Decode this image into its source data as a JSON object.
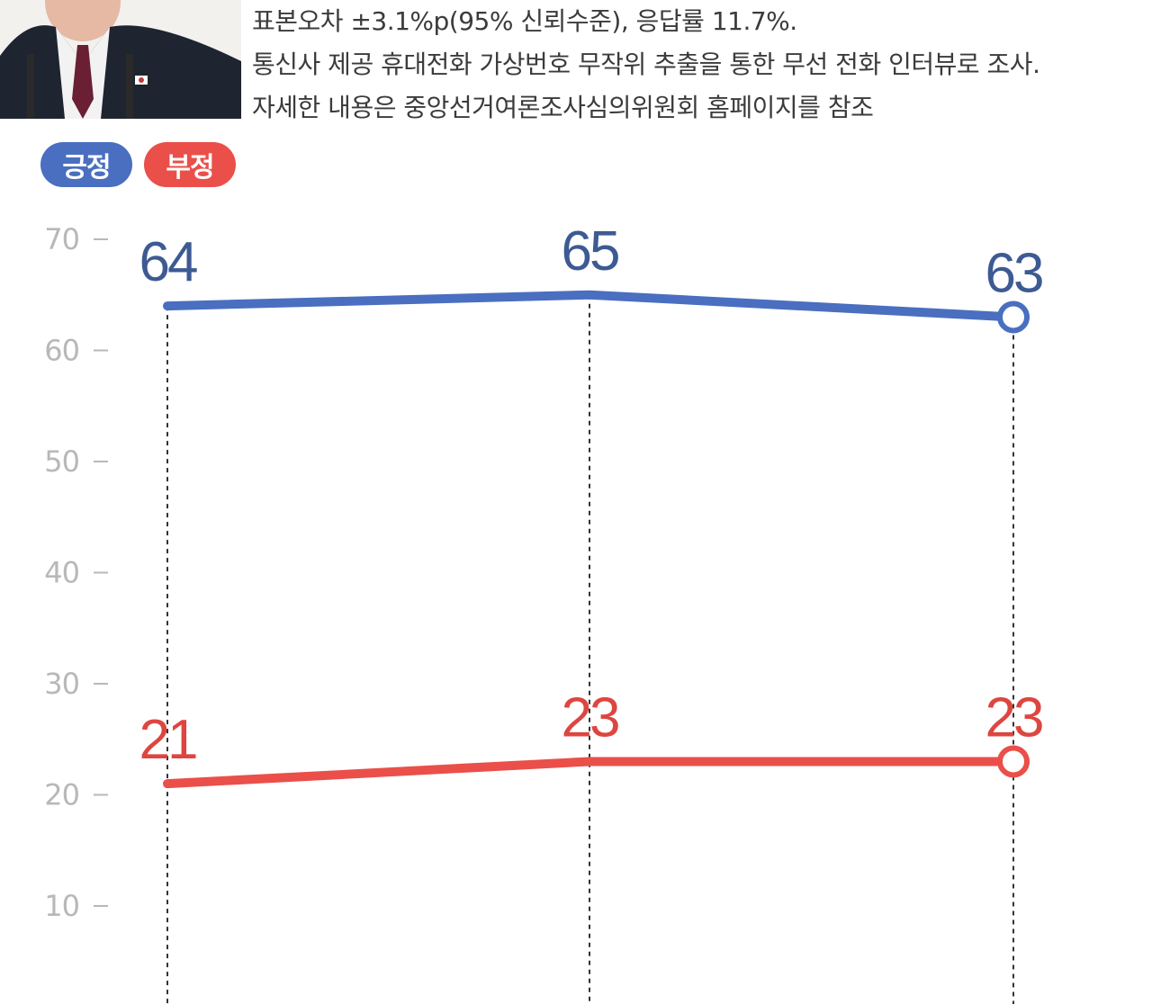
{
  "notes": [
    "표본오차 ±3.1%p(95% 신뢰수준), 응답률 11.7%.",
    "통신사 제공 휴대전화 가상번호 무작위 추출을 통한 무선 전화 인터뷰로 조사.",
    "자세한 내용은 중앙선거여론조사심의위원회 홈페이지를 참조"
  ],
  "legend": {
    "positive": "긍정",
    "negative": "부정"
  },
  "colors": {
    "positive": "#4a6fc0",
    "negative": "#ea4f4a",
    "positive_text": "#3d5a93",
    "negative_text": "#dd4640",
    "axis_text": "#b8b8b8"
  },
  "chart_data": {
    "type": "line",
    "title": "",
    "xlabel": "",
    "ylabel": "",
    "x": [
      "",
      "",
      ""
    ],
    "ylim": [
      0,
      70
    ],
    "yticks": [
      10,
      20,
      30,
      40,
      50,
      60,
      70
    ],
    "grid": false,
    "legend_position": "top-left",
    "series": [
      {
        "name": "긍정",
        "values": [
          64,
          65,
          63
        ],
        "color": "#4a6fc0"
      },
      {
        "name": "부정",
        "values": [
          21,
          23,
          23
        ],
        "color": "#ea4f4a"
      }
    ]
  }
}
